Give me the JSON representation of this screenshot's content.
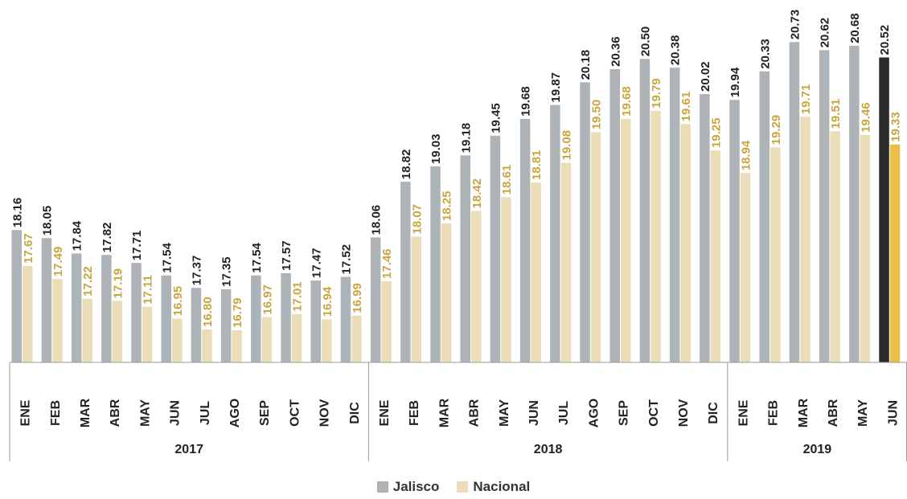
{
  "chart_data": {
    "type": "bar",
    "title": "",
    "xlabel": "",
    "ylabel": "",
    "years": [
      {
        "label": "2017",
        "months": 12
      },
      {
        "label": "2018",
        "months": 12
      },
      {
        "label": "2019",
        "months": 6
      }
    ],
    "categories": [
      "ENE",
      "FEB",
      "MAR",
      "ABR",
      "MAY",
      "JUN",
      "JUL",
      "AGO",
      "SEP",
      "OCT",
      "NOV",
      "DIC",
      "ENE",
      "FEB",
      "MAR",
      "ABR",
      "MAY",
      "JUN",
      "JUL",
      "AGO",
      "SEP",
      "OCT",
      "NOV",
      "DIC",
      "ENE",
      "FEB",
      "MAR",
      "ABR",
      "MAY",
      "JUN"
    ],
    "series": [
      {
        "name": "Jalisco",
        "color": "#AEB3B8",
        "highlight_color": "#2B2B2B",
        "label_color": "#222222",
        "values": [
          18.16,
          18.05,
          17.84,
          17.82,
          17.71,
          17.54,
          17.37,
          17.35,
          17.54,
          17.57,
          17.47,
          17.52,
          18.06,
          18.82,
          19.03,
          19.18,
          19.45,
          19.68,
          19.87,
          20.18,
          20.36,
          20.5,
          20.38,
          20.02,
          19.94,
          20.33,
          20.73,
          20.62,
          20.68,
          20.52
        ]
      },
      {
        "name": "Nacional",
        "color": "#EBDDB8",
        "highlight_color": "#E9BF45",
        "label_color": "#C9A53D",
        "values": [
          17.67,
          17.49,
          17.22,
          17.19,
          17.11,
          16.95,
          16.8,
          16.79,
          16.97,
          17.01,
          16.94,
          16.99,
          17.46,
          18.07,
          18.25,
          18.42,
          18.61,
          18.81,
          19.08,
          19.5,
          19.68,
          19.79,
          19.61,
          19.25,
          18.94,
          19.29,
          19.71,
          19.51,
          19.46,
          19.33
        ]
      }
    ],
    "highlight_index": 29,
    "ylim": [
      16.35,
      20.58
    ],
    "grid": false,
    "legend_position": "bottom-center"
  }
}
